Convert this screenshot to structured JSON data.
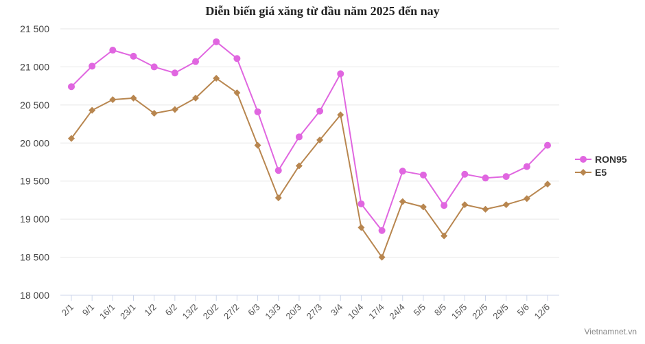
{
  "chart_data": {
    "type": "line",
    "title": "Diễn biến giá xăng từ đầu năm 2025 đến nay",
    "categories": [
      "2/1",
      "9/1",
      "16/1",
      "23/1",
      "1/2",
      "6/2",
      "13/2",
      "20/2",
      "27/2",
      "6/3",
      "13/3",
      "20/3",
      "27/3",
      "3/4",
      "10/4",
      "17/4",
      "24/4",
      "5/5",
      "8/5",
      "15/5",
      "22/5",
      "29/5",
      "5/6",
      "12/6"
    ],
    "series": [
      {
        "name": "RON95",
        "color": "#e066e0",
        "marker": "circle",
        "values": [
          20740,
          21010,
          21220,
          21140,
          21000,
          20920,
          21070,
          21330,
          21110,
          20410,
          19640,
          20080,
          20420,
          20910,
          19200,
          18850,
          19630,
          19580,
          19180,
          19590,
          19540,
          19560,
          19690,
          19970
        ]
      },
      {
        "name": "E5",
        "color": "#b8864f",
        "marker": "diamond",
        "values": [
          20060,
          20430,
          20570,
          20590,
          20390,
          20440,
          20590,
          20850,
          20660,
          19970,
          19280,
          19700,
          20040,
          20370,
          18890,
          18500,
          19230,
          19160,
          18780,
          19190,
          19130,
          19190,
          19270,
          19460
        ]
      }
    ],
    "ylim": [
      18000,
      21500
    ],
    "yticks": [
      18000,
      18500,
      19000,
      19500,
      20000,
      20500,
      21000,
      21500
    ],
    "ytick_labels": [
      "18 000",
      "18 500",
      "19 000",
      "19 500",
      "20 000",
      "20 500",
      "21 000",
      "21 500"
    ],
    "grid": true,
    "legend_position": "right",
    "credit": "Vietnamnet.vn"
  }
}
